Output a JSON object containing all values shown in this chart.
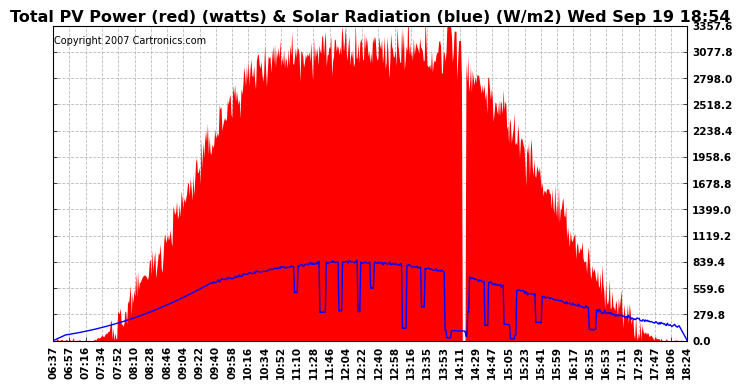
{
  "title": "Total PV Power (red) (watts) & Solar Radiation (blue) (W/m2) Wed Sep 19 18:54",
  "copyright": "Copyright 2007 Cartronics.com",
  "ymin": 0.0,
  "ymax": 3357.6,
  "yticks": [
    0.0,
    279.8,
    559.6,
    839.4,
    1119.2,
    1399.0,
    1678.8,
    1958.6,
    2238.4,
    2518.2,
    2798.0,
    3077.8,
    3357.6
  ],
  "bg_color": "#ffffff",
  "plot_bg_color": "#ffffff",
  "grid_color": "#aaaaaa",
  "red_color": "#ff0000",
  "blue_color": "#0000ff",
  "title_fontsize": 11.5,
  "copyright_fontsize": 7,
  "tick_fontsize": 7.5,
  "xtick_labels": [
    "06:37",
    "06:57",
    "07:16",
    "07:34",
    "07:52",
    "08:10",
    "08:28",
    "08:46",
    "09:04",
    "09:22",
    "09:40",
    "09:58",
    "10:16",
    "10:34",
    "10:52",
    "11:10",
    "11:28",
    "11:46",
    "12:04",
    "12:22",
    "12:40",
    "12:58",
    "13:16",
    "13:35",
    "13:53",
    "14:11",
    "14:29",
    "14:47",
    "15:05",
    "15:23",
    "15:41",
    "15:59",
    "16:17",
    "16:35",
    "16:53",
    "17:11",
    "17:29",
    "17:47",
    "18:06",
    "18:24"
  ]
}
